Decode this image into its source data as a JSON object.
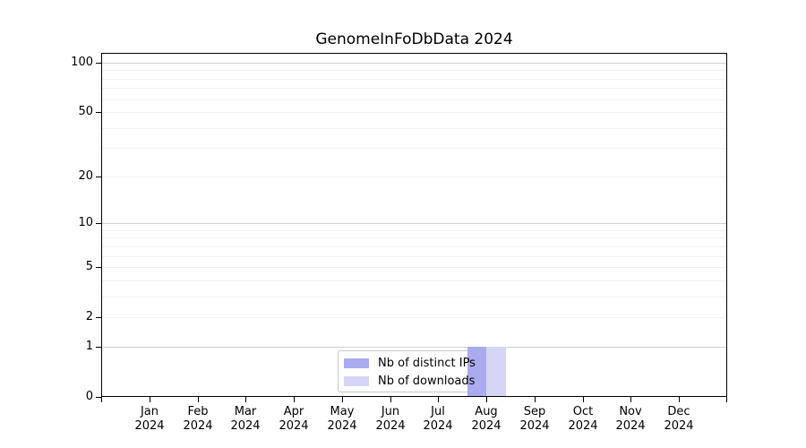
{
  "chart_data": {
    "type": "bar",
    "title": "GenomeInFoDbData 2024",
    "categories": [
      "Jan",
      "Feb",
      "Mar",
      "Apr",
      "May",
      "Jun",
      "Jul",
      "Aug",
      "Sep",
      "Oct",
      "Nov",
      "Dec"
    ],
    "category_year_line": "2024",
    "series": [
      {
        "name": "Nb of distinct IPs",
        "color": "#aaaaee",
        "values": [
          0,
          0,
          0,
          0,
          0,
          0,
          0,
          1,
          0,
          0,
          0,
          0
        ]
      },
      {
        "name": "Nb of downloads",
        "color": "#d5d5f6",
        "values": [
          0,
          0,
          0,
          0,
          0,
          0,
          0,
          1,
          0,
          0,
          0,
          0
        ]
      }
    ],
    "xlabel": "",
    "ylabel": "",
    "yscale": "log1p",
    "ytick_labels": [
      "0",
      "1",
      "2",
      "5",
      "10",
      "20",
      "50",
      "100"
    ],
    "ytick_values": [
      0,
      1,
      2,
      5,
      10,
      20,
      50,
      100
    ],
    "ygrid_minor_values": [
      2,
      3,
      4,
      5,
      6,
      7,
      8,
      9,
      20,
      30,
      40,
      50,
      60,
      70,
      80,
      90
    ],
    "ygrid_major_values": [
      1,
      10,
      100
    ],
    "ylim": [
      0,
      115
    ],
    "grid": "on",
    "legend_position": "inside-bottom-center",
    "colors": {
      "grid_major": "#cfcfcf",
      "grid_minor": "#f1f1f1",
      "axis": "#000000",
      "background": "#ffffff"
    }
  }
}
